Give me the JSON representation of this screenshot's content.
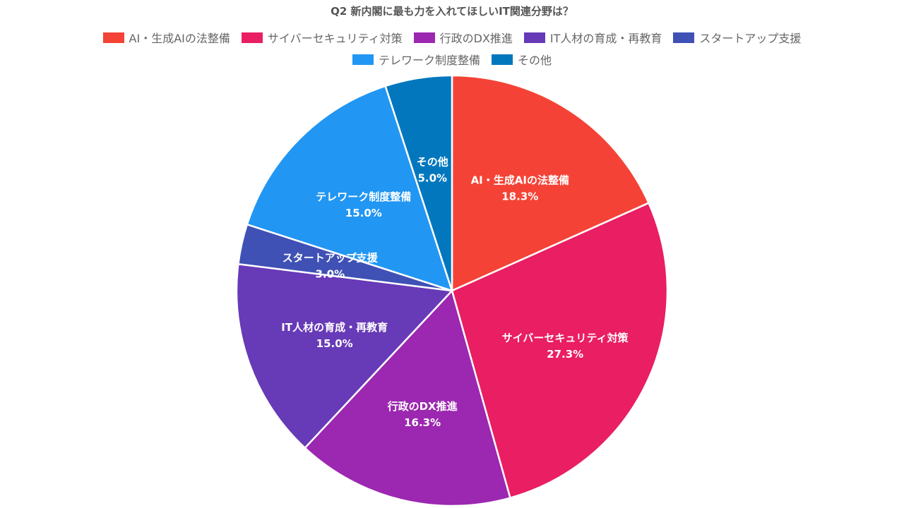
{
  "chart_data": {
    "type": "pie",
    "title": "Q2 新内閣に最も力を入れてほしいIT関連分野は？",
    "categories": [
      "AI・生成AIの法整備",
      "サイバーセキュリティ対策",
      "行政のDX推進",
      "IT人材の育成・再教育",
      "スタートアップ支援",
      "テレワーク制度整備",
      "その他"
    ],
    "values": [
      18.3,
      27.3,
      16.3,
      15.0,
      3.0,
      15.0,
      5.0
    ],
    "value_labels": [
      "18.3%",
      "27.3%",
      "16.3%",
      "15.0%",
      "3.0%",
      "15.0%",
      "5.0%"
    ],
    "colors": [
      "#F44336",
      "#E91E63",
      "#9C27B0",
      "#673AB7",
      "#3F51B5",
      "#2196F3",
      "#0277BD"
    ],
    "legend_position": "top",
    "start_angle": "12 o'clock, clockwise"
  }
}
